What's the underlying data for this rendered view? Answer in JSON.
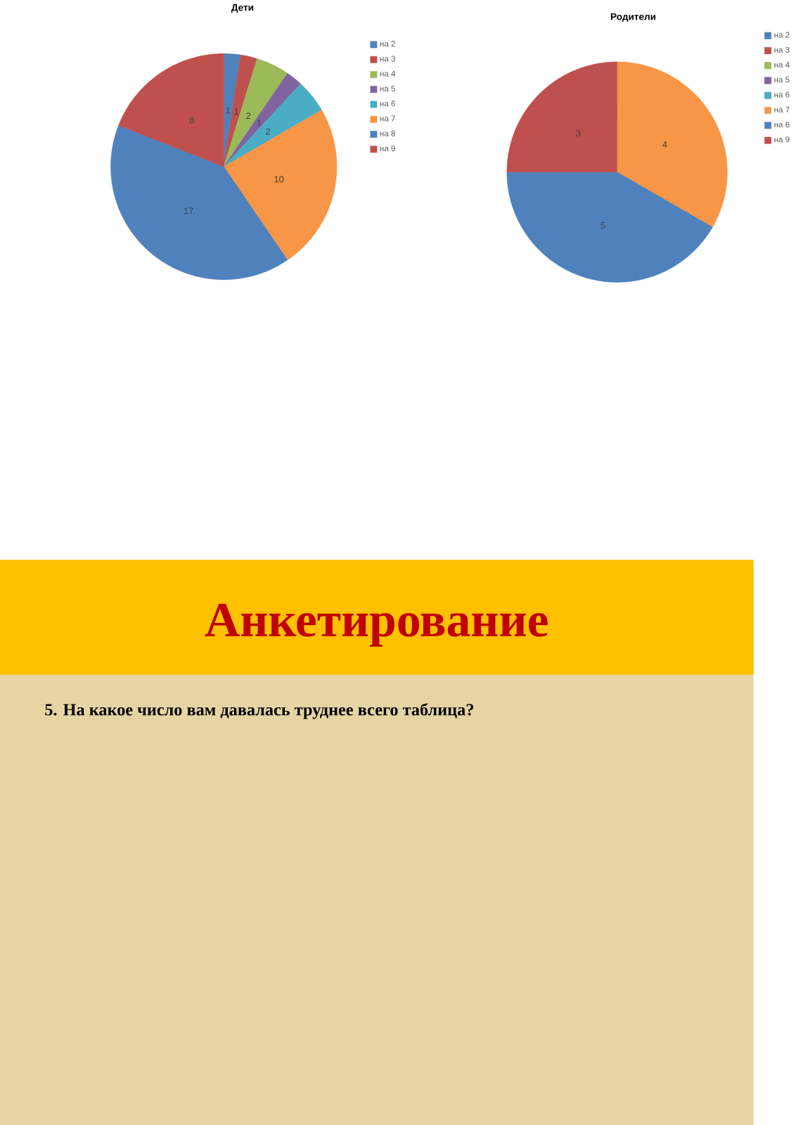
{
  "chart_data": [
    {
      "type": "other",
      "title": "Анкетирование",
      "subtitle": "5. На какое число вам давалась труднее всего таблица?"
    },
    {
      "type": "pie",
      "title": "Дети",
      "categories": [
        "на 2",
        "на 3",
        "на 4",
        "на 5",
        "на 6",
        "на 7",
        "на 8",
        "на 9"
      ],
      "values": [
        1,
        1,
        2,
        1,
        2,
        10,
        17,
        8
      ],
      "colors": [
        "#4f81bd",
        "#c0504d",
        "#9bbb59",
        "#8064a2",
        "#4bacc6",
        "#f79646",
        "#4f81bd",
        "#c0504d"
      ],
      "data_labels": true,
      "legend": "right"
    },
    {
      "type": "pie",
      "title": "Родители",
      "categories": [
        "на 2",
        "на 3",
        "на 4",
        "на 5",
        "на 6",
        "на 7",
        "на 8",
        "на 9"
      ],
      "values": [
        0,
        0,
        0,
        0,
        0,
        4,
        5,
        3
      ],
      "colors": [
        "#4f81bd",
        "#c0504d",
        "#9bbb59",
        "#8064a2",
        "#4bacc6",
        "#f79646",
        "#4f81bd",
        "#c0504d"
      ],
      "value_labels": [
        null,
        null,
        null,
        null,
        null,
        "4",
        "5",
        "3"
      ],
      "legend": "right"
    }
  ]
}
